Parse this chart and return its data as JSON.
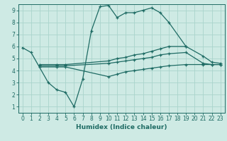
{
  "xlabel": "Humidex (Indice chaleur)",
  "bg_color": "#ceeae4",
  "grid_color": "#aad4cc",
  "line_color": "#1e6b64",
  "xlim": [
    -0.5,
    23.5
  ],
  "ylim": [
    0.5,
    9.5
  ],
  "xticks": [
    0,
    1,
    2,
    3,
    4,
    5,
    6,
    7,
    8,
    9,
    10,
    11,
    12,
    13,
    14,
    15,
    16,
    17,
    18,
    19,
    20,
    21,
    22,
    23
  ],
  "yticks": [
    1,
    2,
    3,
    4,
    5,
    6,
    7,
    8,
    9
  ],
  "series1_x": [
    0,
    1,
    3,
    4,
    5,
    6,
    7,
    8,
    9,
    10,
    11,
    12,
    13,
    14,
    15,
    16,
    17,
    19
  ],
  "series1_y": [
    5.9,
    5.5,
    3.0,
    2.4,
    2.2,
    1.0,
    3.3,
    7.3,
    9.3,
    9.4,
    8.4,
    8.8,
    8.8,
    9.0,
    9.2,
    8.8,
    8.0,
    6.0
  ],
  "series2_x": [
    2,
    4,
    5,
    10,
    11,
    12,
    13,
    14,
    15,
    16,
    17,
    19,
    21,
    22,
    23
  ],
  "series2_y": [
    4.5,
    4.5,
    4.5,
    4.8,
    5.0,
    5.1,
    5.3,
    5.4,
    5.6,
    5.8,
    6.0,
    6.0,
    5.2,
    4.7,
    4.6
  ],
  "series3_x": [
    2,
    4,
    5,
    10,
    11,
    12,
    13,
    14,
    15,
    16,
    17,
    19,
    21,
    22,
    23
  ],
  "series3_y": [
    4.4,
    4.4,
    4.4,
    4.6,
    4.7,
    4.8,
    4.9,
    5.0,
    5.1,
    5.3,
    5.4,
    5.5,
    4.6,
    4.5,
    4.5
  ],
  "series4_x": [
    2,
    4,
    5,
    10,
    11,
    12,
    13,
    14,
    15,
    16,
    17,
    19,
    21,
    22,
    23
  ],
  "series4_y": [
    4.3,
    4.3,
    4.3,
    3.5,
    3.7,
    3.9,
    4.0,
    4.1,
    4.2,
    4.3,
    4.4,
    4.5,
    4.5,
    4.5,
    4.5
  ]
}
